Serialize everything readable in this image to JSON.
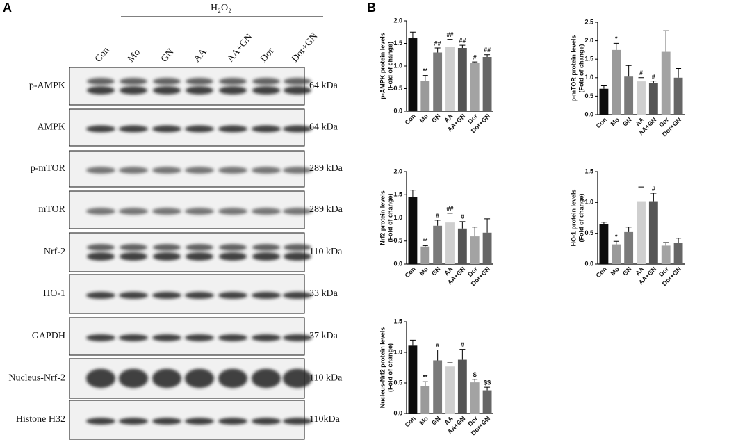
{
  "panel_a": {
    "label": "A",
    "treatment": "H₂O₂",
    "lanes": [
      "Con",
      "Mo",
      "GN",
      "AA",
      "AA+GN",
      "Dor",
      "Dor+GN"
    ],
    "blots": [
      {
        "protein": "p-AMPK",
        "mass": "64 kDa"
      },
      {
        "protein": "AMPK",
        "mass": "64 kDa"
      },
      {
        "protein": "p-mTOR",
        "mass": "289 kDa"
      },
      {
        "protein": "mTOR",
        "mass": "289 kDa"
      },
      {
        "protein": "Nrf-2",
        "mass": "110 kDa"
      },
      {
        "protein": "HO-1",
        "mass": "33 kDa"
      },
      {
        "protein": "GAPDH",
        "mass": "37 kDa"
      },
      {
        "protein": "Nucleus-Nrf-2",
        "mass": "110 kDa"
      },
      {
        "protein": "Histone H32",
        "mass": "110kDa"
      }
    ]
  },
  "panel_b": {
    "label": "B"
  },
  "chart_data": [
    {
      "type": "bar",
      "ylabel": [
        "p-AMPK protein levels",
        "(Fold of change)"
      ],
      "categories": [
        "Con",
        "Mo",
        "GN",
        "AA",
        "AA+GN",
        "Dor",
        "Dor+GN"
      ],
      "values": [
        1.62,
        0.67,
        1.3,
        1.42,
        1.4,
        1.07,
        1.2
      ],
      "errors": [
        0.13,
        0.12,
        0.1,
        0.17,
        0.06,
        0.02,
        0.05
      ],
      "annotations": [
        null,
        "**",
        "##",
        "##",
        "##",
        "#",
        "##"
      ],
      "colors": [
        "#0d0d0d",
        "#9a9a9a",
        "#7a7a7a",
        "#cfcfcf",
        "#555555",
        "#a3a3a3",
        "#666666"
      ],
      "ylim": [
        0,
        2
      ],
      "yticks": [
        {
          "value": 0,
          "label": "0.0"
        },
        {
          "value": 0.5,
          "label": "0.5"
        },
        {
          "value": 1,
          "label": "1.0"
        },
        {
          "value": 1.5,
          "label": "1.5"
        },
        {
          "value": 2,
          "label": "2.0"
        }
      ]
    },
    {
      "type": "bar",
      "ylabel": [
        "p-mTOR protein levels",
        "(Fold of change)"
      ],
      "categories": [
        "Con",
        "Mo",
        "GN",
        "AA",
        "AA+GN",
        "Dor",
        "Dor+GN"
      ],
      "values": [
        0.7,
        1.75,
        1.03,
        0.9,
        0.85,
        1.7,
        1.0
      ],
      "errors": [
        0.08,
        0.18,
        0.3,
        0.1,
        0.06,
        0.57,
        0.25
      ],
      "annotations": [
        null,
        "*",
        null,
        "#",
        "#",
        null,
        null
      ],
      "colors": [
        "#0d0d0d",
        "#9a9a9a",
        "#7a7a7a",
        "#cfcfcf",
        "#555555",
        "#a3a3a3",
        "#666666"
      ],
      "ylim": [
        0,
        2.5
      ],
      "yticks": [
        {
          "value": 0,
          "label": "0.0"
        },
        {
          "value": 0.5,
          "label": "0.5"
        },
        {
          "value": 1,
          "label": "1.0"
        },
        {
          "value": 1.5,
          "label": "1.5"
        },
        {
          "value": 2,
          "label": "2.0"
        },
        2.5
      ]
    },
    {
      "type": "bar",
      "ylabel": [
        "Nrf2 protein levels",
        "(Fold of change)"
      ],
      "categories": [
        "Con",
        "Mo",
        "GN",
        "AA",
        "AA+GN",
        "Dor",
        "Dor+GN"
      ],
      "values": [
        1.45,
        0.38,
        0.83,
        0.9,
        0.77,
        0.6,
        0.68
      ],
      "errors": [
        0.15,
        0.02,
        0.12,
        0.2,
        0.15,
        0.2,
        0.3
      ],
      "annotations": [
        null,
        "**",
        "#",
        "##",
        "#",
        null,
        null
      ],
      "colors": [
        "#0d0d0d",
        "#9a9a9a",
        "#7a7a7a",
        "#cfcfcf",
        "#555555",
        "#a3a3a3",
        "#666666"
      ],
      "ylim": [
        0,
        2
      ],
      "yticks": [
        {
          "value": 0,
          "label": "0.0"
        },
        {
          "value": 0.5,
          "label": "0.5"
        },
        {
          "value": 1,
          "label": "1.0"
        },
        {
          "value": 1.5,
          "label": "1.5"
        },
        {
          "value": 2,
          "label": "2.0"
        }
      ]
    },
    {
      "type": "bar",
      "ylabel": [
        "HO-1 protein levels",
        "(Fold of change)"
      ],
      "categories": [
        "Con",
        "Mo",
        "GN",
        "AA",
        "AA+GN",
        "Dor",
        "Dor+GN"
      ],
      "values": [
        0.65,
        0.32,
        0.52,
        1.02,
        1.02,
        0.3,
        0.34
      ],
      "errors": [
        0.03,
        0.05,
        0.08,
        0.23,
        0.13,
        0.05,
        0.08
      ],
      "annotations": [
        null,
        "*",
        null,
        null,
        "#",
        null,
        null
      ],
      "colors": [
        "#0d0d0d",
        "#9a9a9a",
        "#7a7a7a",
        "#cfcfcf",
        "#555555",
        "#a3a3a3",
        "#666666"
      ],
      "ylim": [
        0,
        1.5
      ],
      "yticks": [
        {
          "value": 0,
          "label": "0.0"
        },
        {
          "value": 0.5,
          "label": "0.5"
        },
        {
          "value": 1,
          "label": "1.0"
        },
        1.5
      ]
    },
    {
      "type": "bar",
      "ylabel": [
        "Nucleus-Nrf2 protein levels",
        "(Fold of change)"
      ],
      "categories": [
        "Con",
        "Mo",
        "GN",
        "AA",
        "AA+GN",
        "Dor",
        "Dor+GN"
      ],
      "values": [
        1.11,
        0.45,
        0.87,
        0.77,
        0.88,
        0.51,
        0.38
      ],
      "errors": [
        0.09,
        0.07,
        0.17,
        0.06,
        0.17,
        0.05,
        0.05
      ],
      "annotations": [
        null,
        "**",
        "#",
        null,
        "#",
        "$",
        "$$"
      ],
      "colors": [
        "#0d0d0d",
        "#9a9a9a",
        "#7a7a7a",
        "#cfcfcf",
        "#555555",
        "#a3a3a3",
        "#666666"
      ],
      "ylim": [
        0,
        1.5
      ],
      "yticks": [
        {
          "value": 0,
          "label": "0.0"
        },
        {
          "value": 0.5,
          "label": "0.5"
        },
        {
          "value": 1,
          "label": "1.0"
        },
        1.5
      ]
    }
  ]
}
